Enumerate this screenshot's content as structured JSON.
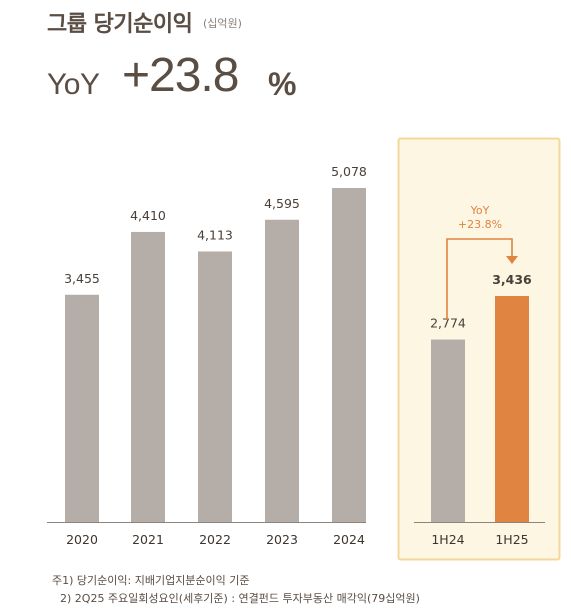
{
  "header": {
    "title": "그룹 당기순이익",
    "unit": "(십억원)",
    "yoy_label": "YoY",
    "yoy_value": "+23.8",
    "yoy_pct": "%"
  },
  "colors": {
    "bar_gray": "#b5aea8",
    "bar_orange": "#e08442",
    "highlight_fill": "#fdf6e3",
    "highlight_border": "#f4d89a",
    "orange_text": "#e08442"
  },
  "chart_data": [
    {
      "type": "bar",
      "categories": [
        "2020",
        "2021",
        "2022",
        "2023",
        "2024"
      ],
      "values": [
        3455,
        4410,
        4113,
        4595,
        5078
      ],
      "value_labels": [
        "3,455",
        "4,410",
        "4,113",
        "4,595",
        "5,078"
      ]
    },
    {
      "type": "bar",
      "categories": [
        "1H24",
        "1H25"
      ],
      "values": [
        2774,
        3436
      ],
      "value_labels": [
        "2,774",
        "3,436"
      ],
      "annotation": {
        "line1": "YoY",
        "line2": "+23.8%"
      }
    }
  ],
  "notes": {
    "note1": "주1) 당기순이익: 지배기업지분순이익 기준",
    "note2": "2) 2Q25 주요일회성요인(세후기준) : 연결펀드 투자부동산 매각익(79십억원)"
  }
}
